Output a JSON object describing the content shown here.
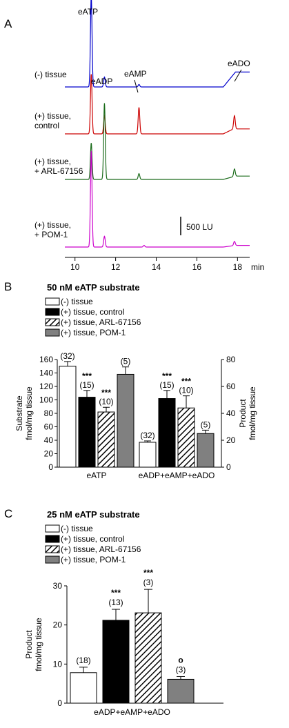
{
  "chart_data": [
    {
      "type": "line",
      "panel_label": "A",
      "xlabel_unit": "min",
      "xlim": [
        9.5,
        18.6
      ],
      "x_ticks": [
        "10",
        "12",
        "14",
        "16",
        "18"
      ],
      "scale_bar_label": "500 LU",
      "peak_labels": [
        "eATP",
        "eADP",
        "eAMP",
        "eADO"
      ],
      "series": [
        {
          "label_lines": [
            "(-) tissue"
          ],
          "color": "#0000cc",
          "peaks": [
            [
              10.8,
              5.5
            ],
            [
              11.45,
              0.6
            ],
            [
              13.15,
              0.15
            ]
          ],
          "plateau": {
            "x0": 17.3,
            "x1": 17.9,
            "height": 0.9
          }
        },
        {
          "label_lines": [
            "(+) tissue,",
            "control"
          ],
          "color": "#cc0000",
          "peaks": [
            [
              10.8,
              3.6
            ],
            [
              11.45,
              1.1
            ],
            [
              13.15,
              1.6
            ],
            [
              17.85,
              0.8
            ]
          ],
          "plateau": {
            "x0": 17.3,
            "x1": 17.8,
            "height": 0.3
          }
        },
        {
          "label_lines": [
            "(+) tissue,",
            "+ ARL-67156"
          ],
          "color": "#1a6b1a",
          "peaks": [
            [
              10.8,
              2.2
            ],
            [
              11.45,
              4.6
            ],
            [
              13.15,
              0.35
            ],
            [
              17.85,
              0.45
            ]
          ],
          "plateau": {
            "x0": 17.3,
            "x1": 17.9,
            "height": 0.2
          }
        },
        {
          "label_lines": [
            "(+) tissue,",
            "+ POM-1"
          ],
          "color": "#cc00cc",
          "peaks": [
            [
              10.8,
              5.8
            ],
            [
              11.45,
              0.65
            ],
            [
              13.4,
              0.1
            ],
            [
              17.85,
              0.25
            ]
          ],
          "plateau": {
            "x0": 17.3,
            "x1": 17.9,
            "height": 0.1
          }
        }
      ]
    },
    {
      "type": "bar",
      "panel_label": "B",
      "title": "50 nM eATP substrate",
      "legend": [
        "(-) tissue",
        "(+) tissue, control",
        "(+) tissue, ARL-67156",
        "(+) tissue, POM-1"
      ],
      "ylabel_left": [
        "Substrate",
        "fmol/mg tissue"
      ],
      "ylabel_right": [
        "Product",
        "fmol/mg tissue"
      ],
      "ylim_left": [
        0,
        160
      ],
      "yticks_left": [
        "0",
        "20",
        "40",
        "60",
        "80",
        "100",
        "120",
        "140",
        "160"
      ],
      "ylim_right": [
        0,
        80
      ],
      "yticks_right": [
        "0",
        "20",
        "40",
        "60",
        "80"
      ],
      "groups": [
        {
          "category": "eATP",
          "axis": "left",
          "bars": [
            {
              "value": 150,
              "err": 7,
              "n": "(32)",
              "sig": ""
            },
            {
              "value": 104,
              "err": 10,
              "n": "(15)",
              "sig": "***"
            },
            {
              "value": 82,
              "err": 7,
              "n": "(10)",
              "sig": "***"
            },
            {
              "value": 138,
              "err": 11,
              "n": "(5)",
              "sig": ""
            }
          ]
        },
        {
          "category": "eADP+eAMP+eADO",
          "axis": "right",
          "bars": [
            {
              "value": 18.5,
              "err": 1,
              "n": "(32)",
              "sig": ""
            },
            {
              "value": 51,
              "err": 6,
              "n": "(15)",
              "sig": "***"
            },
            {
              "value": 44,
              "err": 9,
              "n": "(10)",
              "sig": "***"
            },
            {
              "value": 25,
              "err": 2.5,
              "n": "(5)",
              "sig": ""
            }
          ]
        }
      ]
    },
    {
      "type": "bar",
      "panel_label": "C",
      "title": "25 nM eATP substrate",
      "legend": [
        "(-) tissue",
        "(+) tissue, control",
        "(+) tissue, ARL-67156",
        "(+) tissue, POM-1"
      ],
      "ylabel": [
        "Product",
        "fmol/mg tissue"
      ],
      "ylim": [
        0,
        30
      ],
      "yticks": [
        "0",
        "10",
        "20",
        "30"
      ],
      "category": "eADP+eAMP+eADO",
      "bars": [
        {
          "value": 7.8,
          "err": 1.4,
          "n": "(18)",
          "sig": ""
        },
        {
          "value": 21.2,
          "err": 2.8,
          "n": "(13)",
          "sig": "***"
        },
        {
          "value": 23.1,
          "err": 6,
          "n": "(3)",
          "sig": "***"
        },
        {
          "value": 6.1,
          "err": 0.7,
          "n": "(3)",
          "sig": "o"
        }
      ]
    }
  ],
  "styles": {
    "fills": [
      "#ffffff",
      "#000000",
      "hatch",
      "#808080"
    ],
    "axis_color": "#000000"
  }
}
